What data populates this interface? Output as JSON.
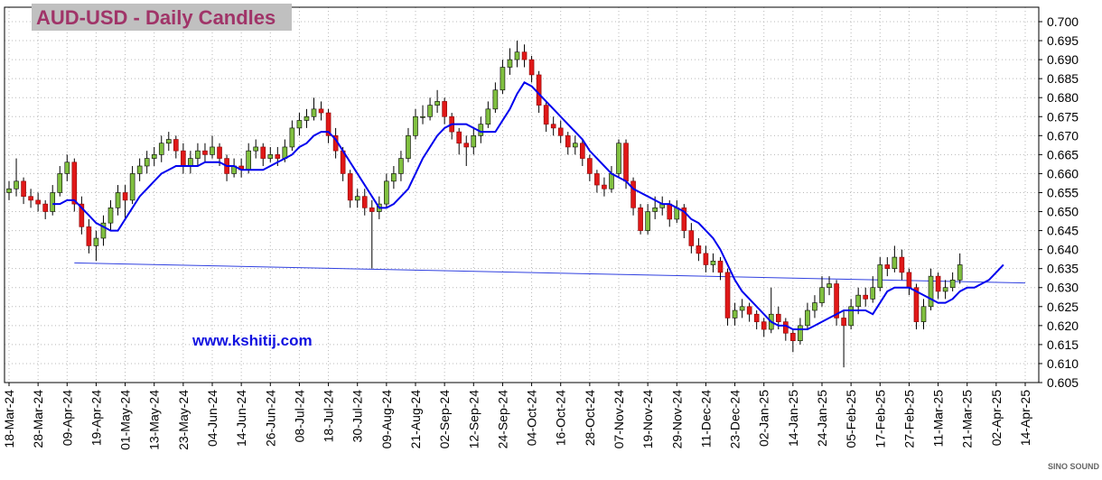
{
  "chart_data": {
    "type": "candlestick",
    "title": "AUD-USD - Daily Candles",
    "watermark": "www.kshitij.com",
    "logo_text": "SINO SOUND",
    "categories": [
      "18-Mar-24",
      null,
      null,
      null,
      "28-Mar-24",
      null,
      null,
      null,
      "09-Apr-24",
      null,
      null,
      null,
      "19-Apr-24",
      null,
      null,
      null,
      "01-May-24",
      null,
      null,
      null,
      "13-May-24",
      null,
      null,
      null,
      "23-May-24",
      null,
      null,
      null,
      "04-Jun-24",
      null,
      null,
      null,
      "14-Jun-24",
      null,
      null,
      null,
      "26-Jun-24",
      null,
      null,
      null,
      "08-Jul-24",
      null,
      null,
      null,
      "18-Jul-24",
      null,
      null,
      null,
      "30-Jul-24",
      null,
      null,
      null,
      "09-Aug-24",
      null,
      null,
      null,
      "21-Aug-24",
      null,
      null,
      null,
      "02-Sep-24",
      null,
      null,
      null,
      "12-Sep-24",
      null,
      null,
      null,
      "24-Sep-24",
      null,
      null,
      null,
      "04-Oct-24",
      null,
      null,
      null,
      "16-Oct-24",
      null,
      null,
      null,
      "28-Oct-24",
      null,
      null,
      null,
      "07-Nov-24",
      null,
      null,
      null,
      "19-Nov-24",
      null,
      null,
      null,
      "29-Nov-24",
      null,
      null,
      null,
      "11-Dec-24",
      null,
      null,
      null,
      "23-Dec-24",
      null,
      null,
      null,
      "02-Jan-25",
      null,
      null,
      null,
      "14-Jan-25",
      null,
      null,
      null,
      "24-Jan-25",
      null,
      null,
      null,
      "05-Feb-25",
      null,
      null,
      null,
      "17-Feb-25",
      null,
      null,
      null,
      "27-Feb-25",
      null,
      null,
      null,
      "11-Mar-25",
      null,
      null,
      null,
      "21-Mar-25",
      null,
      null,
      null,
      "02-Apr-25",
      null,
      null,
      null,
      "14-Apr-25"
    ],
    "candles": [
      [
        0.655,
        0.658,
        0.653,
        0.656
      ],
      [
        0.656,
        0.664,
        0.654,
        0.658
      ],
      [
        0.658,
        0.659,
        0.652,
        0.654
      ],
      [
        0.654,
        0.656,
        0.651,
        0.653
      ],
      [
        0.653,
        0.655,
        0.65,
        0.652
      ],
      [
        0.652,
        0.653,
        0.648,
        0.65
      ],
      [
        0.65,
        0.657,
        0.649,
        0.655
      ],
      [
        0.655,
        0.662,
        0.654,
        0.66
      ],
      [
        0.66,
        0.665,
        0.658,
        0.663
      ],
      [
        0.663,
        0.664,
        0.65,
        0.652
      ],
      [
        0.652,
        0.654,
        0.644,
        0.646
      ],
      [
        0.646,
        0.648,
        0.639,
        0.641
      ],
      [
        0.641,
        0.645,
        0.637,
        0.643
      ],
      [
        0.643,
        0.649,
        0.641,
        0.647
      ],
      [
        0.647,
        0.653,
        0.645,
        0.651
      ],
      [
        0.651,
        0.657,
        0.649,
        0.655
      ],
      [
        0.655,
        0.657,
        0.648,
        0.653
      ],
      [
        0.653,
        0.662,
        0.652,
        0.66
      ],
      [
        0.66,
        0.664,
        0.658,
        0.662
      ],
      [
        0.662,
        0.666,
        0.66,
        0.664
      ],
      [
        0.664,
        0.667,
        0.662,
        0.665
      ],
      [
        0.665,
        0.67,
        0.663,
        0.668
      ],
      [
        0.668,
        0.671,
        0.666,
        0.669
      ],
      [
        0.669,
        0.67,
        0.664,
        0.666
      ],
      [
        0.666,
        0.668,
        0.66,
        0.662
      ],
      [
        0.662,
        0.666,
        0.66,
        0.664
      ],
      [
        0.664,
        0.668,
        0.662,
        0.666
      ],
      [
        0.666,
        0.668,
        0.663,
        0.665
      ],
      [
        0.665,
        0.67,
        0.664,
        0.667
      ],
      [
        0.667,
        0.668,
        0.662,
        0.664
      ],
      [
        0.664,
        0.665,
        0.658,
        0.66
      ],
      [
        0.66,
        0.664,
        0.659,
        0.662
      ],
      [
        0.662,
        0.664,
        0.659,
        0.661
      ],
      [
        0.661,
        0.668,
        0.66,
        0.666
      ],
      [
        0.666,
        0.669,
        0.664,
        0.667
      ],
      [
        0.667,
        0.668,
        0.662,
        0.664
      ],
      [
        0.664,
        0.667,
        0.663,
        0.665
      ],
      [
        0.665,
        0.667,
        0.662,
        0.664
      ],
      [
        0.664,
        0.669,
        0.663,
        0.667
      ],
      [
        0.667,
        0.674,
        0.666,
        0.672
      ],
      [
        0.672,
        0.676,
        0.67,
        0.674
      ],
      [
        0.674,
        0.677,
        0.672,
        0.675
      ],
      [
        0.675,
        0.68,
        0.674,
        0.677
      ],
      [
        0.677,
        0.679,
        0.674,
        0.676
      ],
      [
        0.676,
        0.677,
        0.668,
        0.67
      ],
      [
        0.67,
        0.672,
        0.664,
        0.666
      ],
      [
        0.666,
        0.667,
        0.658,
        0.66
      ],
      [
        0.66,
        0.661,
        0.651,
        0.653
      ],
      [
        0.653,
        0.656,
        0.651,
        0.654
      ],
      [
        0.654,
        0.656,
        0.649,
        0.651
      ],
      [
        0.651,
        0.653,
        0.635,
        0.65
      ],
      [
        0.65,
        0.654,
        0.648,
        0.652
      ],
      [
        0.652,
        0.66,
        0.651,
        0.658
      ],
      [
        0.658,
        0.662,
        0.656,
        0.66
      ],
      [
        0.66,
        0.666,
        0.658,
        0.664
      ],
      [
        0.664,
        0.672,
        0.663,
        0.67
      ],
      [
        0.67,
        0.677,
        0.669,
        0.675
      ],
      [
        0.675,
        0.678,
        0.673,
        0.675
      ],
      [
        0.675,
        0.68,
        0.674,
        0.678
      ],
      [
        0.678,
        0.682,
        0.676,
        0.679
      ],
      [
        0.679,
        0.68,
        0.673,
        0.675
      ],
      [
        0.675,
        0.676,
        0.669,
        0.671
      ],
      [
        0.671,
        0.672,
        0.665,
        0.668
      ],
      [
        0.668,
        0.67,
        0.662,
        0.667
      ],
      [
        0.667,
        0.672,
        0.665,
        0.67
      ],
      [
        0.67,
        0.675,
        0.668,
        0.673
      ],
      [
        0.673,
        0.679,
        0.672,
        0.677
      ],
      [
        0.677,
        0.684,
        0.676,
        0.682
      ],
      [
        0.682,
        0.69,
        0.681,
        0.688
      ],
      [
        0.688,
        0.693,
        0.686,
        0.69
      ],
      [
        0.69,
        0.695,
        0.688,
        0.692
      ],
      [
        0.692,
        0.694,
        0.688,
        0.69
      ],
      [
        0.69,
        0.691,
        0.684,
        0.686
      ],
      [
        0.686,
        0.687,
        0.676,
        0.678
      ],
      [
        0.678,
        0.679,
        0.671,
        0.673
      ],
      [
        0.673,
        0.675,
        0.67,
        0.672
      ],
      [
        0.672,
        0.674,
        0.668,
        0.67
      ],
      [
        0.67,
        0.671,
        0.665,
        0.667
      ],
      [
        0.667,
        0.67,
        0.665,
        0.668
      ],
      [
        0.668,
        0.669,
        0.662,
        0.664
      ],
      [
        0.664,
        0.665,
        0.658,
        0.66
      ],
      [
        0.66,
        0.661,
        0.655,
        0.657
      ],
      [
        0.657,
        0.659,
        0.654,
        0.656
      ],
      [
        0.656,
        0.662,
        0.655,
        0.66
      ],
      [
        0.66,
        0.669,
        0.659,
        0.668
      ],
      [
        0.668,
        0.669,
        0.656,
        0.658
      ],
      [
        0.658,
        0.659,
        0.649,
        0.651
      ],
      [
        0.651,
        0.652,
        0.644,
        0.645
      ],
      [
        0.645,
        0.652,
        0.644,
        0.65
      ],
      [
        0.65,
        0.654,
        0.648,
        0.651
      ],
      [
        0.651,
        0.654,
        0.649,
        0.652
      ],
      [
        0.652,
        0.653,
        0.646,
        0.648
      ],
      [
        0.648,
        0.653,
        0.647,
        0.651
      ],
      [
        0.651,
        0.652,
        0.643,
        0.645
      ],
      [
        0.645,
        0.647,
        0.639,
        0.641
      ],
      [
        0.641,
        0.643,
        0.637,
        0.639
      ],
      [
        0.639,
        0.641,
        0.634,
        0.636
      ],
      [
        0.636,
        0.639,
        0.634,
        0.637
      ],
      [
        0.637,
        0.638,
        0.632,
        0.634
      ],
      [
        0.634,
        0.635,
        0.62,
        0.622
      ],
      [
        0.622,
        0.626,
        0.62,
        0.624
      ],
      [
        0.624,
        0.627,
        0.622,
        0.625
      ],
      [
        0.625,
        0.626,
        0.621,
        0.623
      ],
      [
        0.623,
        0.624,
        0.619,
        0.621
      ],
      [
        0.621,
        0.622,
        0.617,
        0.619
      ],
      [
        0.619,
        0.63,
        0.618,
        0.623
      ],
      [
        0.623,
        0.625,
        0.619,
        0.621
      ],
      [
        0.621,
        0.622,
        0.616,
        0.618
      ],
      [
        0.618,
        0.619,
        0.613,
        0.616
      ],
      [
        0.616,
        0.622,
        0.615,
        0.62
      ],
      [
        0.62,
        0.626,
        0.619,
        0.624
      ],
      [
        0.624,
        0.628,
        0.622,
        0.626
      ],
      [
        0.626,
        0.633,
        0.625,
        0.63
      ],
      [
        0.63,
        0.633,
        0.628,
        0.631
      ],
      [
        0.631,
        0.632,
        0.62,
        0.622
      ],
      [
        0.622,
        0.624,
        0.609,
        0.62
      ],
      [
        0.62,
        0.627,
        0.619,
        0.625
      ],
      [
        0.625,
        0.63,
        0.623,
        0.628
      ],
      [
        0.628,
        0.63,
        0.625,
        0.627
      ],
      [
        0.627,
        0.633,
        0.626,
        0.63
      ],
      [
        0.63,
        0.638,
        0.629,
        0.636
      ],
      [
        0.636,
        0.638,
        0.633,
        0.635
      ],
      [
        0.635,
        0.641,
        0.634,
        0.638
      ],
      [
        0.638,
        0.64,
        0.632,
        0.634
      ],
      [
        0.634,
        0.635,
        0.628,
        0.63
      ],
      [
        0.63,
        0.631,
        0.619,
        0.621
      ],
      [
        0.621,
        0.627,
        0.619,
        0.625
      ],
      [
        0.625,
        0.635,
        0.624,
        0.633
      ],
      [
        0.633,
        0.634,
        0.627,
        0.629
      ],
      [
        0.629,
        0.632,
        0.627,
        0.63
      ],
      [
        0.63,
        0.634,
        0.629,
        0.632
      ],
      [
        0.632,
        0.639,
        0.631,
        0.636
      ]
    ],
    "up_color": "#80c040",
    "down_color": "#e01818",
    "series": [
      {
        "color": "#0000ee",
        "values": [
          null,
          null,
          null,
          null,
          null,
          null,
          0.652,
          0.652,
          0.653,
          0.653,
          0.651,
          0.649,
          0.647,
          0.646,
          0.645,
          0.645,
          0.648,
          0.651,
          0.654,
          0.656,
          0.658,
          0.66,
          0.661,
          0.662,
          0.662,
          0.662,
          0.662,
          0.663,
          0.663,
          0.663,
          0.662,
          0.662,
          0.661,
          0.661,
          0.661,
          0.661,
          0.662,
          0.663,
          0.664,
          0.665,
          0.667,
          0.668,
          0.67,
          0.671,
          0.671,
          0.669,
          0.666,
          0.663,
          0.66,
          0.657,
          0.654,
          0.651,
          0.651,
          0.652,
          0.654,
          0.656,
          0.66,
          0.664,
          0.667,
          0.67,
          0.672,
          0.673,
          0.673,
          0.673,
          0.672,
          0.671,
          0.671,
          0.671,
          0.674,
          0.677,
          0.681,
          0.684,
          0.683,
          0.681,
          0.679,
          0.677,
          0.675,
          0.673,
          0.671,
          0.669,
          0.666,
          0.664,
          0.662,
          0.66,
          0.659,
          0.658,
          0.656,
          0.655,
          0.654,
          0.653,
          0.652,
          0.652,
          0.651,
          0.65,
          0.648,
          0.647,
          0.645,
          0.643,
          0.64,
          0.636,
          0.632,
          0.629,
          0.627,
          0.625,
          0.623,
          0.621,
          0.62,
          0.62,
          0.619,
          0.619,
          0.619,
          0.62,
          0.621,
          0.622,
          0.623,
          0.624,
          0.624,
          0.624,
          0.624,
          0.623,
          0.626,
          0.629,
          0.63,
          0.63,
          0.63,
          0.629,
          0.628,
          0.627,
          0.626,
          0.626,
          0.627,
          0.629,
          0.63,
          0.63,
          0.631,
          0.632,
          0.634,
          0.636,
          null,
          null,
          null
        ]
      }
    ],
    "trendline": {
      "color": "#3040e0",
      "x": [
        9,
        140
      ],
      "values": [
        0.6365,
        0.6312
      ]
    },
    "ylim": [
      0.605,
      0.7
    ],
    "yticks": [
      0.605,
      {
        "value": 0.61,
        "label": "0.610"
      },
      0.615,
      {
        "value": 0.62,
        "label": "0.620"
      },
      0.625,
      {
        "value": 0.63,
        "label": "0.630"
      },
      0.635,
      {
        "value": 0.64,
        "label": "0.640"
      },
      0.645,
      {
        "value": 0.65,
        "label": "0.650"
      },
      0.655,
      {
        "value": 0.66,
        "label": "0.660"
      },
      0.665,
      {
        "value": 0.67,
        "label": "0.670"
      },
      0.675,
      {
        "value": 0.68,
        "label": "0.680"
      },
      0.685,
      {
        "value": 0.69,
        "label": "0.690"
      },
      0.695,
      {
        "value": 0.7,
        "label": "0.700"
      }
    ],
    "grid": true
  }
}
